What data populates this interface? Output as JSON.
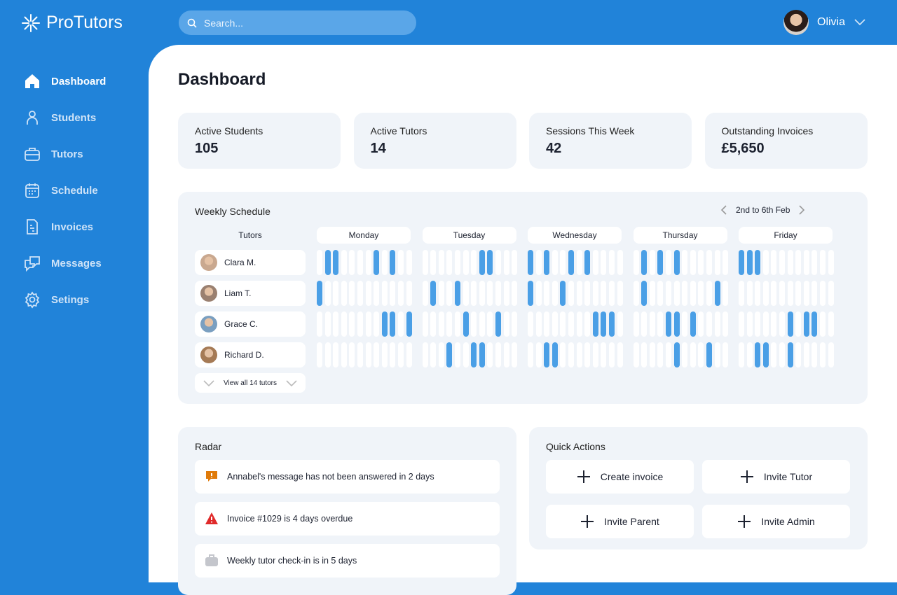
{
  "app": {
    "name": "ProTutors"
  },
  "search": {
    "placeholder": "Search..."
  },
  "user": {
    "name": "Olivia"
  },
  "sidebar": {
    "items": [
      {
        "label": "Dashboard",
        "icon": "home-icon",
        "active": true
      },
      {
        "label": "Students",
        "icon": "user-icon"
      },
      {
        "label": "Tutors",
        "icon": "briefcase-icon"
      },
      {
        "label": "Schedule",
        "icon": "calendar-icon"
      },
      {
        "label": "Invoices",
        "icon": "document-icon"
      },
      {
        "label": "Messages",
        "icon": "chat-icon"
      },
      {
        "label": "Setings",
        "icon": "gear-icon"
      }
    ]
  },
  "page": {
    "title": "Dashboard"
  },
  "stats": [
    {
      "label": "Active Students",
      "value": "105"
    },
    {
      "label": "Active Tutors",
      "value": "14"
    },
    {
      "label": "Sessions This Week",
      "value": "42"
    },
    {
      "label": "Outstanding Invoices",
      "value": "£5,650"
    }
  ],
  "schedule": {
    "title": "Weekly Schedule",
    "range": "2nd to 6th Feb",
    "tutors_header": "Tutors",
    "view_all": "View all 14 tutors",
    "days": [
      "Monday",
      "Tuesday",
      "Wednesday",
      "Thursday",
      "Friday"
    ],
    "slots_per_day": 12,
    "tutors": [
      {
        "name": "Clara M.",
        "booked": [
          [
            1,
            2,
            7,
            9
          ],
          [
            7,
            8
          ],
          [
            0,
            2,
            5,
            7
          ],
          [
            1,
            3,
            5
          ],
          [
            0,
            1,
            2
          ]
        ]
      },
      {
        "name": "Liam T.",
        "booked": [
          [
            0
          ],
          [
            1,
            4
          ],
          [
            0,
            4
          ],
          [
            1,
            10
          ],
          []
        ]
      },
      {
        "name": "Grace C.",
        "booked": [
          [
            8,
            9,
            11
          ],
          [
            5,
            9
          ],
          [
            8,
            9,
            10
          ],
          [
            4,
            5,
            7
          ],
          [
            6,
            8,
            9
          ]
        ]
      },
      {
        "name": "Richard D.",
        "booked": [
          [],
          [
            3,
            6,
            7
          ],
          [
            2,
            3
          ],
          [
            5,
            9
          ],
          [
            2,
            3,
            6
          ]
        ]
      }
    ],
    "colors": {
      "booked": "#4a9fe6",
      "free": "#ffffff"
    }
  },
  "radar": {
    "title": "Radar",
    "items": [
      {
        "text": "Annabel's message has not been answered in 2 days",
        "icon": "message-alert-icon",
        "color": "#e07b0a"
      },
      {
        "text": "Invoice #1029 is 4 days overdue",
        "icon": "warning-triangle-icon",
        "color": "#e02a2a"
      },
      {
        "text": "Weekly tutor check-in is in 5 days",
        "icon": "briefcase-icon",
        "color": "#c4c6cc"
      }
    ]
  },
  "quick_actions": {
    "title": "Quick Actions",
    "items": [
      "Create invoice",
      "Invite Tutor",
      "Invite Parent",
      "Invite Admin"
    ]
  }
}
